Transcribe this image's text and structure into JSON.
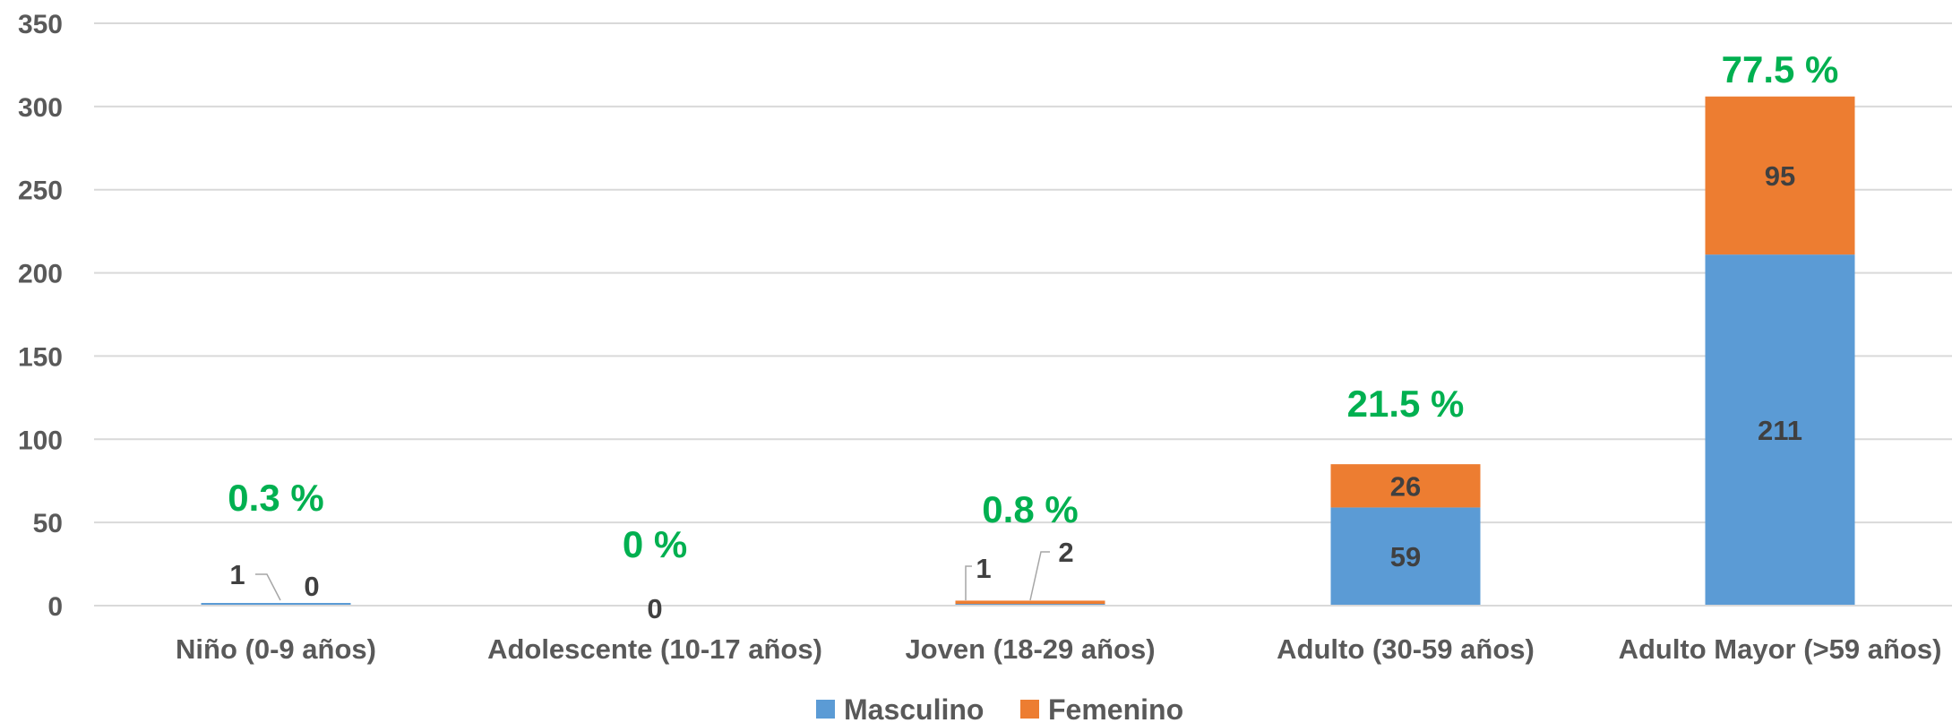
{
  "chart_data": {
    "type": "bar",
    "stacked": true,
    "title": "",
    "xlabel": "",
    "ylabel": "",
    "ylim": [
      0,
      350
    ],
    "yticks": [
      0,
      50,
      100,
      150,
      200,
      250,
      300,
      350
    ],
    "grid": true,
    "legend_position": "bottom",
    "categories": [
      "Niño (0-9 años)",
      "Adolescente (10-17 años)",
      "Joven (18-29 años)",
      "Adulto (30-59 años)",
      "Adulto Mayor (>59 años)"
    ],
    "series": [
      {
        "name": "Masculino",
        "color": "#5B9BD5",
        "values": [
          1,
          0,
          1,
          59,
          211
        ],
        "labels": [
          "1",
          "0",
          "1",
          "59",
          "211"
        ]
      },
      {
        "name": "Femenino",
        "color": "#ED7D31",
        "values": [
          0,
          0,
          2,
          26,
          95
        ],
        "labels": [
          "0",
          "",
          "2",
          "26",
          "95"
        ]
      }
    ],
    "percent_labels": [
      "0.3 %",
      "0 %",
      "0.8 %",
      "21.5 %",
      "77.5 %"
    ],
    "percent_color": "#00B050",
    "axis_text_color": "#595959",
    "grid_color": "#D9D9D9"
  }
}
